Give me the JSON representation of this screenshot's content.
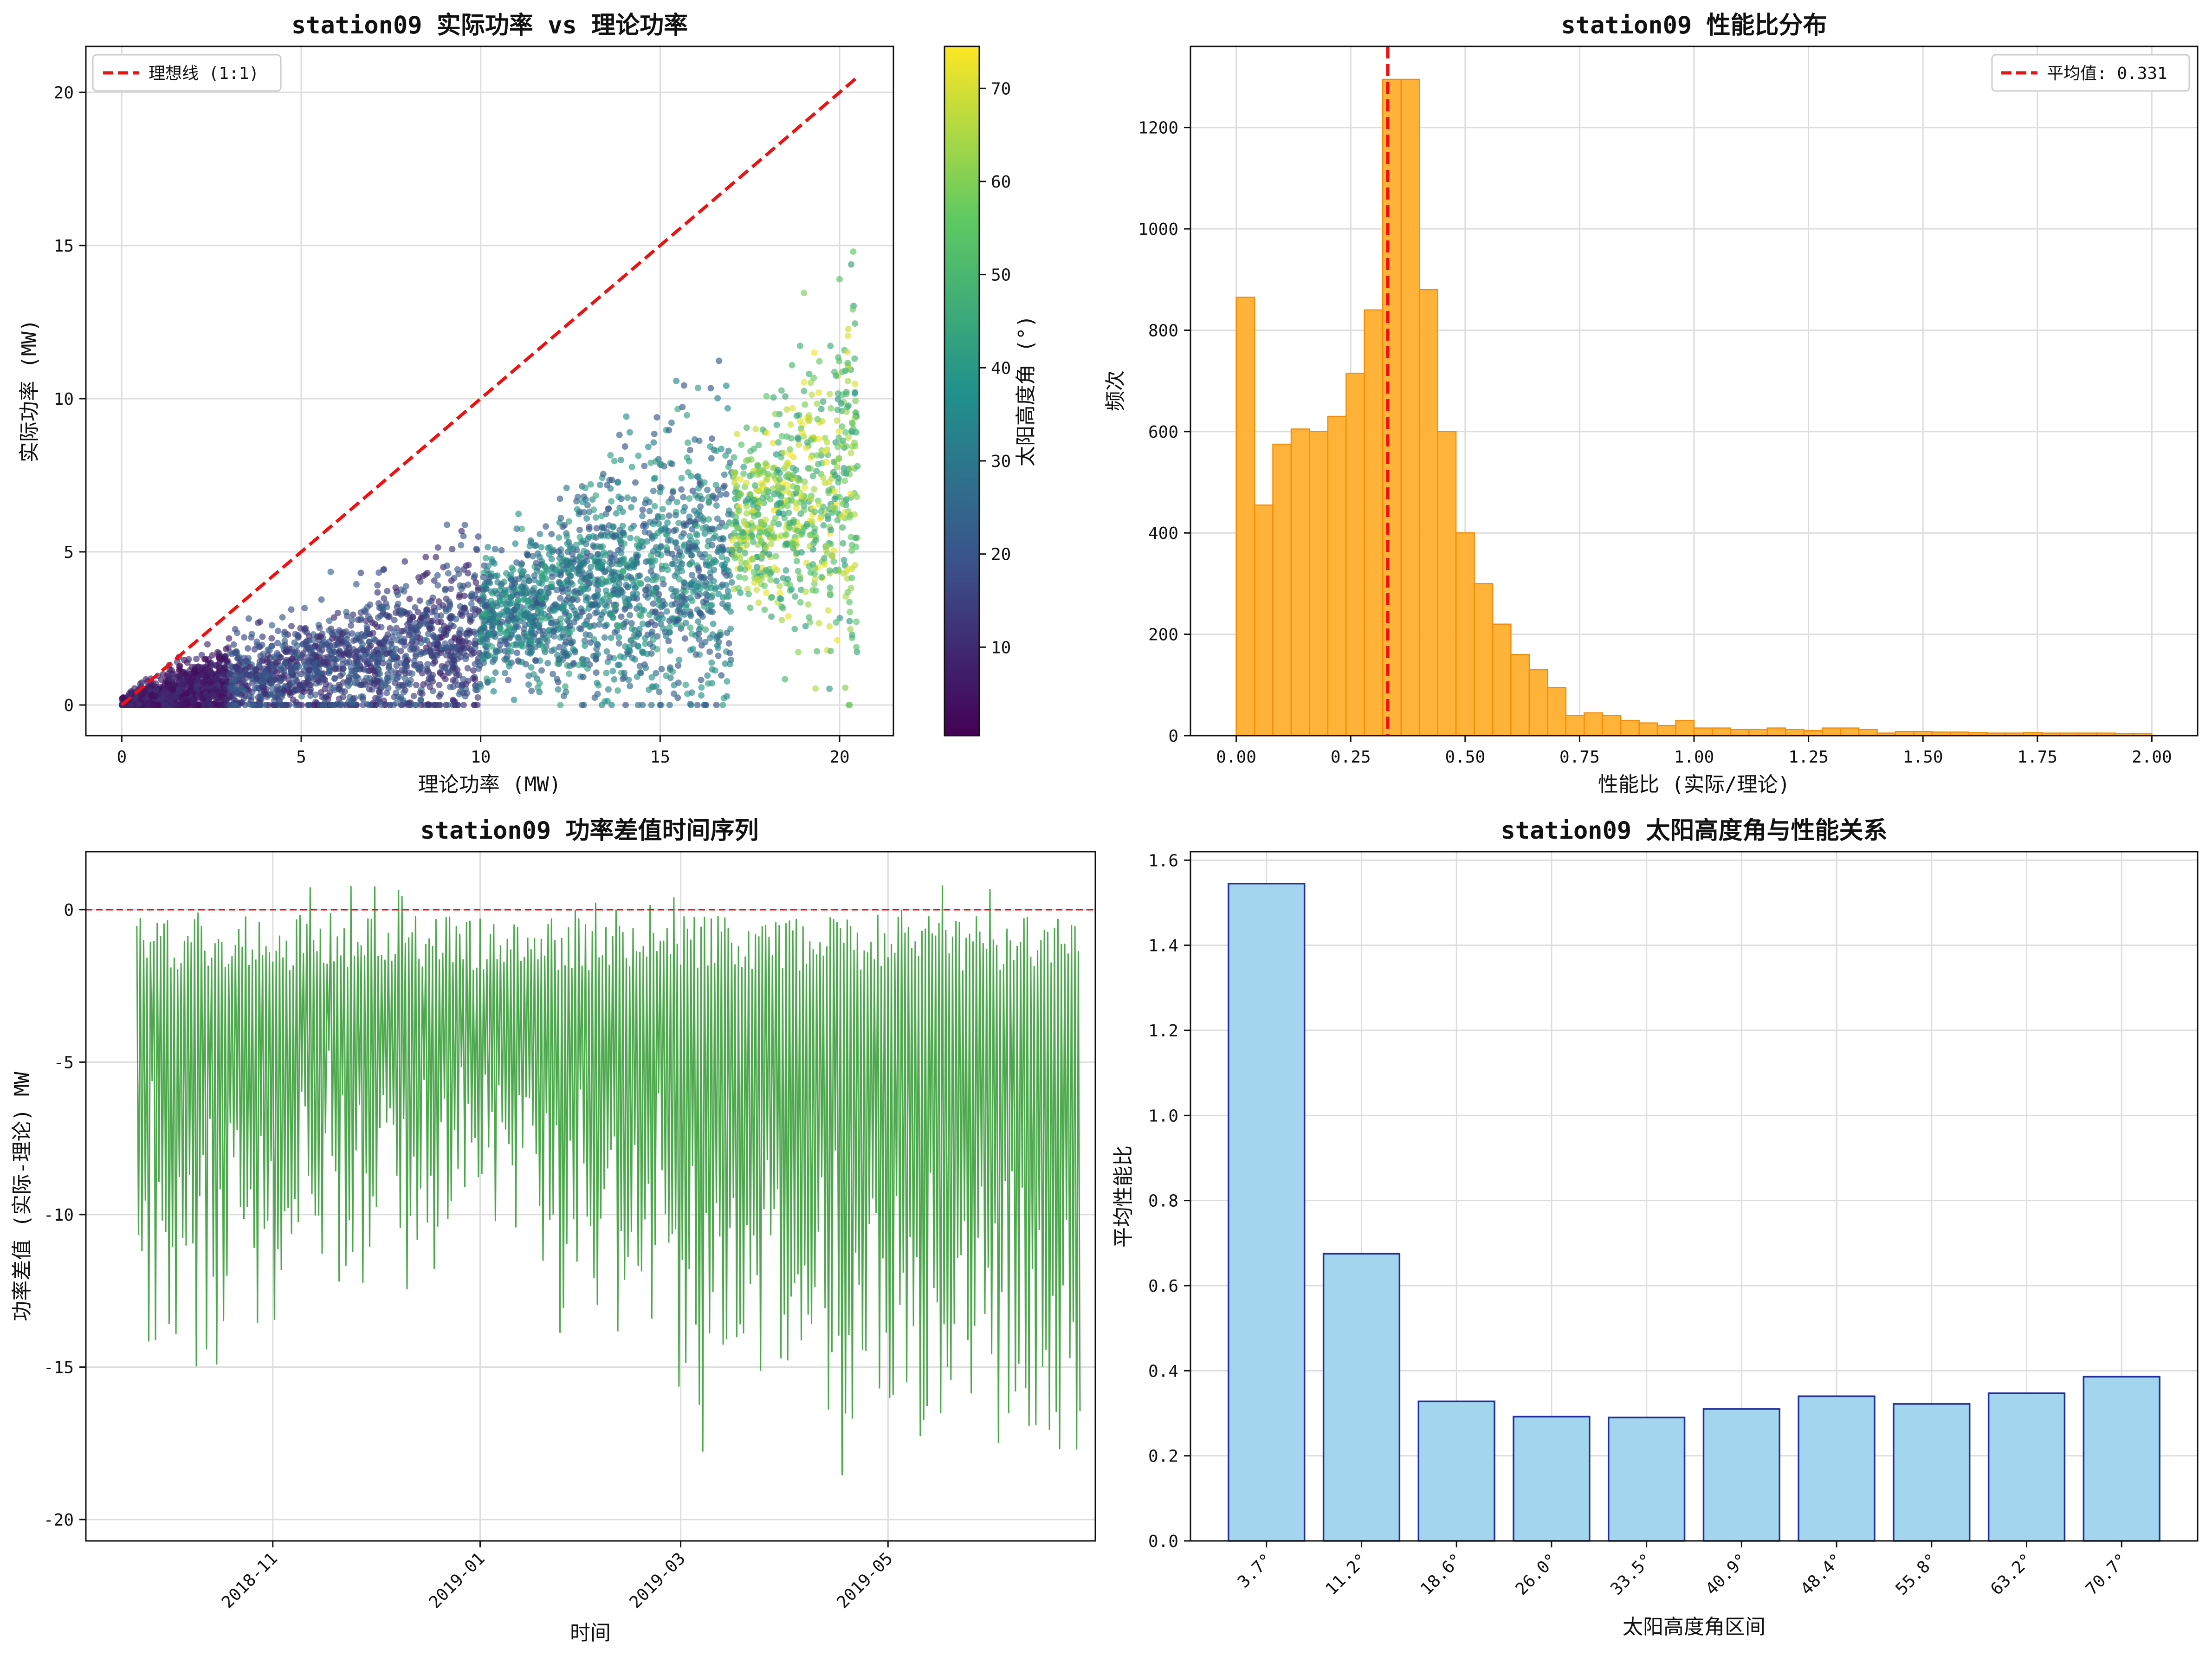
{
  "chart_data": [
    {
      "type": "scatter",
      "title": "station09 实际功率 vs 理论功率",
      "xlabel": "理论功率 (MW)",
      "ylabel": "实际功率 (MW)",
      "xlim": [
        -1,
        21.5
      ],
      "ylim": [
        -1,
        21.5
      ],
      "xticks": [
        0,
        5,
        10,
        15,
        20
      ],
      "yticks": [
        0,
        5,
        10,
        15,
        20
      ],
      "grid": true,
      "legend": {
        "position": "top-left",
        "entries": [
          "理想线 (1:1)"
        ]
      },
      "colorbar": {
        "label": "太阳高度角 (°)",
        "range": [
          0.5,
          74.5
        ],
        "ticks": [
          10,
          20,
          30,
          40,
          50,
          60,
          70
        ],
        "colormap": "viridis"
      },
      "ideal_line": {
        "x": [
          0,
          20.5
        ],
        "y": [
          0,
          20.5
        ]
      },
      "point_clusters": [
        {
          "x_range": [
            0,
            3
          ],
          "y_center_ratio": 0.25,
          "y_spread": 0.6,
          "angle_range": [
            2,
            12
          ],
          "count": 900
        },
        {
          "x_range": [
            3,
            10
          ],
          "y_center_ratio": 0.22,
          "y_spread": 1.5,
          "angle_range": [
            8,
            25
          ],
          "count": 1400
        },
        {
          "x_range": [
            10,
            17
          ],
          "y_center_ratio": 0.28,
          "y_spread": 2.5,
          "angle_range": [
            18,
            45
          ],
          "count": 1600
        },
        {
          "x_range": [
            17,
            20.5
          ],
          "y_center_ratio": 0.35,
          "y_spread": 3.0,
          "angle_range": [
            40,
            74
          ],
          "count": 700
        }
      ]
    },
    {
      "type": "bar",
      "title": "station09 性能比分布",
      "xlabel": "性能比 (实际/理论)",
      "ylabel": "频次",
      "xlim": [
        -0.1,
        2.1
      ],
      "ylim": [
        0,
        1360
      ],
      "xticks": [
        "0.00",
        "0.25",
        "0.50",
        "0.75",
        "1.00",
        "1.25",
        "1.50",
        "1.75",
        "2.00"
      ],
      "yticks": [
        0,
        200,
        400,
        600,
        800,
        1000,
        1200
      ],
      "bin_start": 0,
      "bin_width": 0.04,
      "values": [
        865,
        455,
        575,
        605,
        600,
        630,
        715,
        840,
        1295,
        1295,
        880,
        600,
        400,
        300,
        220,
        160,
        130,
        95,
        40,
        45,
        40,
        30,
        25,
        20,
        30,
        15,
        15,
        12,
        12,
        15,
        12,
        10,
        15,
        15,
        12,
        5,
        8,
        8,
        7,
        7,
        6,
        5,
        5,
        6,
        5,
        5,
        5,
        5,
        4,
        4
      ],
      "mean": 0.331,
      "grid": true,
      "legend": {
        "position": "top-right",
        "entries": [
          "平均值: 0.331"
        ]
      }
    },
    {
      "type": "line",
      "title": "station09 功率差值时间序列",
      "xlabel": "时间",
      "ylabel": "功率差值 (实际-理论) MW",
      "ylim": [
        -20.7,
        1.9
      ],
      "yticks": [
        0,
        -5,
        -10,
        -15,
        -20
      ],
      "x_date_range": [
        "2018-09-22",
        "2019-06-26"
      ],
      "xticks": [
        "2018-11",
        "2019-01",
        "2019-03",
        "2019-05"
      ],
      "grid": true,
      "reference_line": 0,
      "daily_amplitude_profile": [
        {
          "from": "2018-09-22",
          "to": "2018-11-01",
          "min": -13.5
        },
        {
          "from": "2018-11-01",
          "to": "2019-01-15",
          "min": -11.5
        },
        {
          "from": "2019-01-15",
          "to": "2019-03-01",
          "min": -13.0
        },
        {
          "from": "2019-03-01",
          "to": "2019-04-15",
          "min": -16.0
        },
        {
          "from": "2019-04-15",
          "to": "2019-06-26",
          "min": -17.5
        }
      ],
      "extremes": {
        "max": 0.8,
        "min": -19.7
      }
    },
    {
      "type": "bar",
      "title": "station09 太阳高度角与性能关系",
      "xlabel": "太阳高度角区间",
      "ylabel": "平均性能比",
      "categories": [
        "3.7°",
        "11.2°",
        "18.6°",
        "26.0°",
        "33.5°",
        "40.9°",
        "48.4°",
        "55.8°",
        "63.2°",
        "70.7°"
      ],
      "values": [
        1.545,
        0.675,
        0.328,
        0.292,
        0.29,
        0.31,
        0.34,
        0.322,
        0.347,
        0.386
      ],
      "ylim": [
        0,
        1.62
      ],
      "yticks": [
        "0.0",
        "0.2",
        "0.4",
        "0.6",
        "0.8",
        "1.0",
        "1.2",
        "1.4",
        "1.6"
      ],
      "grid": true
    }
  ],
  "colors": {
    "ideal": "#ee1111",
    "hist_fill": "#ffb02e",
    "hist_edge": "#f28c0a",
    "line": "#3a9e3a",
    "bar_fill": "#a3d5ee",
    "bar_edge": "#1f2e9c"
  }
}
